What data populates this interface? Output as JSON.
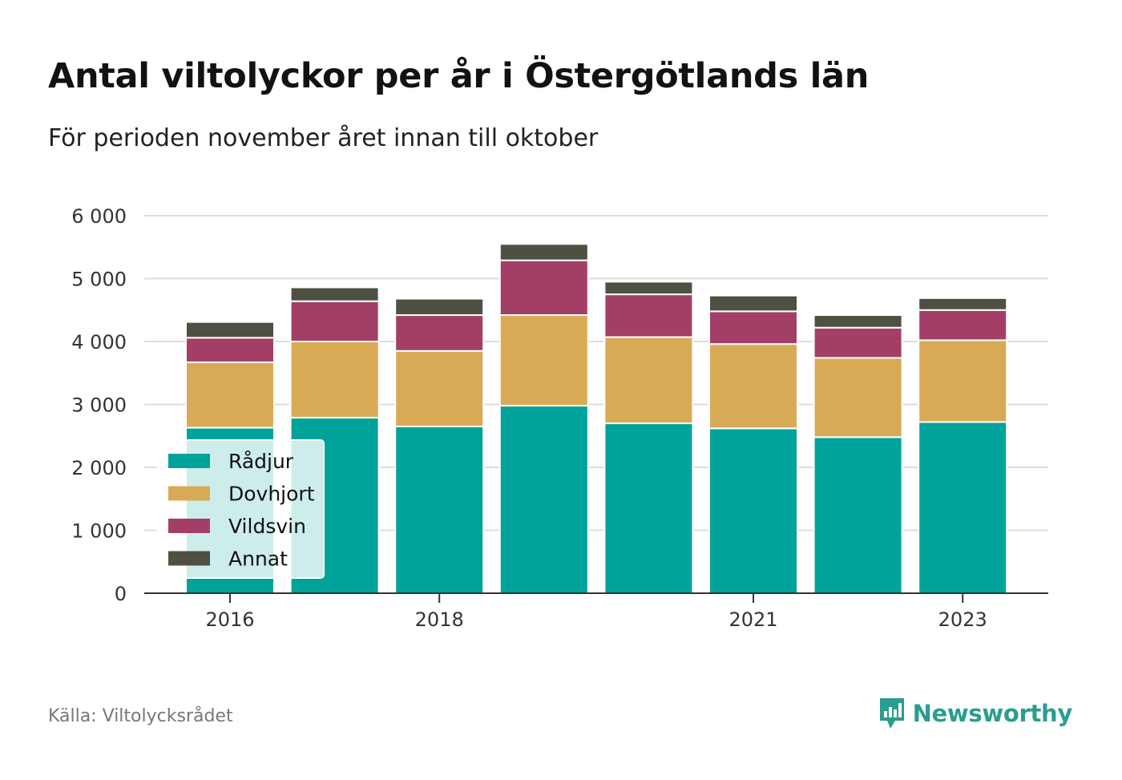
{
  "title": "Antal viltolyckor per år i Östergötlands län",
  "subtitle": "För perioden november året innan till oktober",
  "source": "Källa: Viltolycksrådet",
  "brand": {
    "name": "Newsworthy",
    "icon": "newsworthy-logo-icon",
    "color": "#2a9d8f"
  },
  "chart_data": {
    "type": "bar",
    "stacked": true,
    "x": [
      2016,
      2017,
      2018,
      2019,
      2020,
      2021,
      2022,
      2023
    ],
    "x_tick_labels": [
      "2016",
      "2018",
      "2021",
      "2023"
    ],
    "x_tick_values": [
      2016,
      2018,
      2021,
      2023
    ],
    "ylim": [
      0,
      6000
    ],
    "y_ticks": [
      0,
      1000,
      2000,
      3000,
      4000,
      5000,
      6000
    ],
    "y_tick_labels": [
      "0",
      "1 000",
      "2 000",
      "3 000",
      "4 000",
      "5 000",
      "6 000"
    ],
    "grid": true,
    "legend_position": "bottom-left",
    "series": [
      {
        "name": "Rådjur",
        "color": "#00a39a",
        "values": [
          2630,
          2790,
          2650,
          2980,
          2700,
          2620,
          2480,
          2720
        ]
      },
      {
        "name": "Dovhjort",
        "color": "#d9aa56",
        "values": [
          1040,
          1210,
          1200,
          1440,
          1370,
          1340,
          1260,
          1300
        ]
      },
      {
        "name": "Vildsvin",
        "color": "#a33f66",
        "values": [
          390,
          640,
          570,
          870,
          680,
          520,
          480,
          480
        ]
      },
      {
        "name": "Annat",
        "color": "#4e5042",
        "values": [
          250,
          220,
          260,
          260,
          200,
          250,
          200,
          190
        ]
      }
    ]
  }
}
